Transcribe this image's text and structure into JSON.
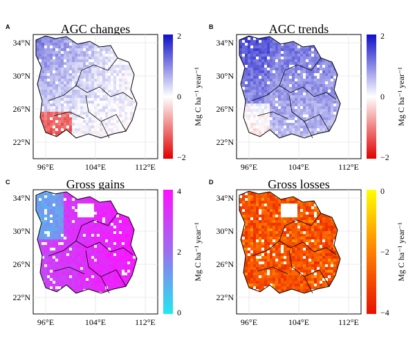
{
  "chart_data": [
    {
      "type": "heatmap",
      "panel_label": "A",
      "title": "AGC changes",
      "x_ticks": [
        "96°E",
        "104°E",
        "112°E"
      ],
      "y_ticks": [
        "34°N",
        "30°N",
        "26°N",
        "22°N"
      ],
      "xlim": [
        94,
        114
      ],
      "ylim": [
        20.5,
        35.5
      ],
      "colorbar": {
        "label": "Mg C ha⁻¹ year⁻¹",
        "range": [
          -2,
          2
        ],
        "ticks": [
          "2",
          "0",
          "−2"
        ],
        "colors": [
          "#e00000",
          "#ffffff",
          "#1010c8"
        ]
      }
    },
    {
      "type": "heatmap",
      "panel_label": "B",
      "title": "AGC trends",
      "x_ticks": [
        "96°E",
        "104°E",
        "112°E"
      ],
      "y_ticks": [
        "34°N",
        "30°N",
        "26°N",
        "22°N"
      ],
      "xlim": [
        94,
        114
      ],
      "ylim": [
        20.5,
        35.5
      ],
      "colorbar": {
        "label": "Mg C ha⁻¹ year⁻¹",
        "range": [
          -2,
          2
        ],
        "ticks": [
          "2",
          "0",
          "−2"
        ],
        "colors": [
          "#e00000",
          "#ffffff",
          "#1010c8"
        ]
      }
    },
    {
      "type": "heatmap",
      "panel_label": "C",
      "title": "Gross gains",
      "x_ticks": [
        "96°E",
        "104°E",
        "112°E"
      ],
      "y_ticks": [
        "34°N",
        "30°N",
        "26°N",
        "22°N"
      ],
      "xlim": [
        94,
        114
      ],
      "ylim": [
        20.5,
        35.5
      ],
      "colorbar": {
        "label": "Mg C ha⁻¹ year⁻¹",
        "range": [
          0,
          4
        ],
        "ticks": [
          "4",
          "2",
          "0"
        ],
        "colors": [
          "#22e8f0",
          "#9a70f0",
          "#ff10ff"
        ]
      }
    },
    {
      "type": "heatmap",
      "panel_label": "D",
      "title": "Gross losses",
      "x_ticks": [
        "96°E",
        "104°E",
        "112°E"
      ],
      "y_ticks": [
        "34°N",
        "30°N",
        "26°N",
        "22°N"
      ],
      "xlim": [
        94,
        114
      ],
      "ylim": [
        20.5,
        35.5
      ],
      "colorbar": {
        "label": "Mg C ha⁻¹ year⁻¹",
        "range": [
          -4,
          0
        ],
        "ticks": [
          "0",
          "−2",
          "−4"
        ],
        "colors": [
          "#e81000",
          "#ff8000",
          "#ffff00"
        ]
      }
    }
  ]
}
